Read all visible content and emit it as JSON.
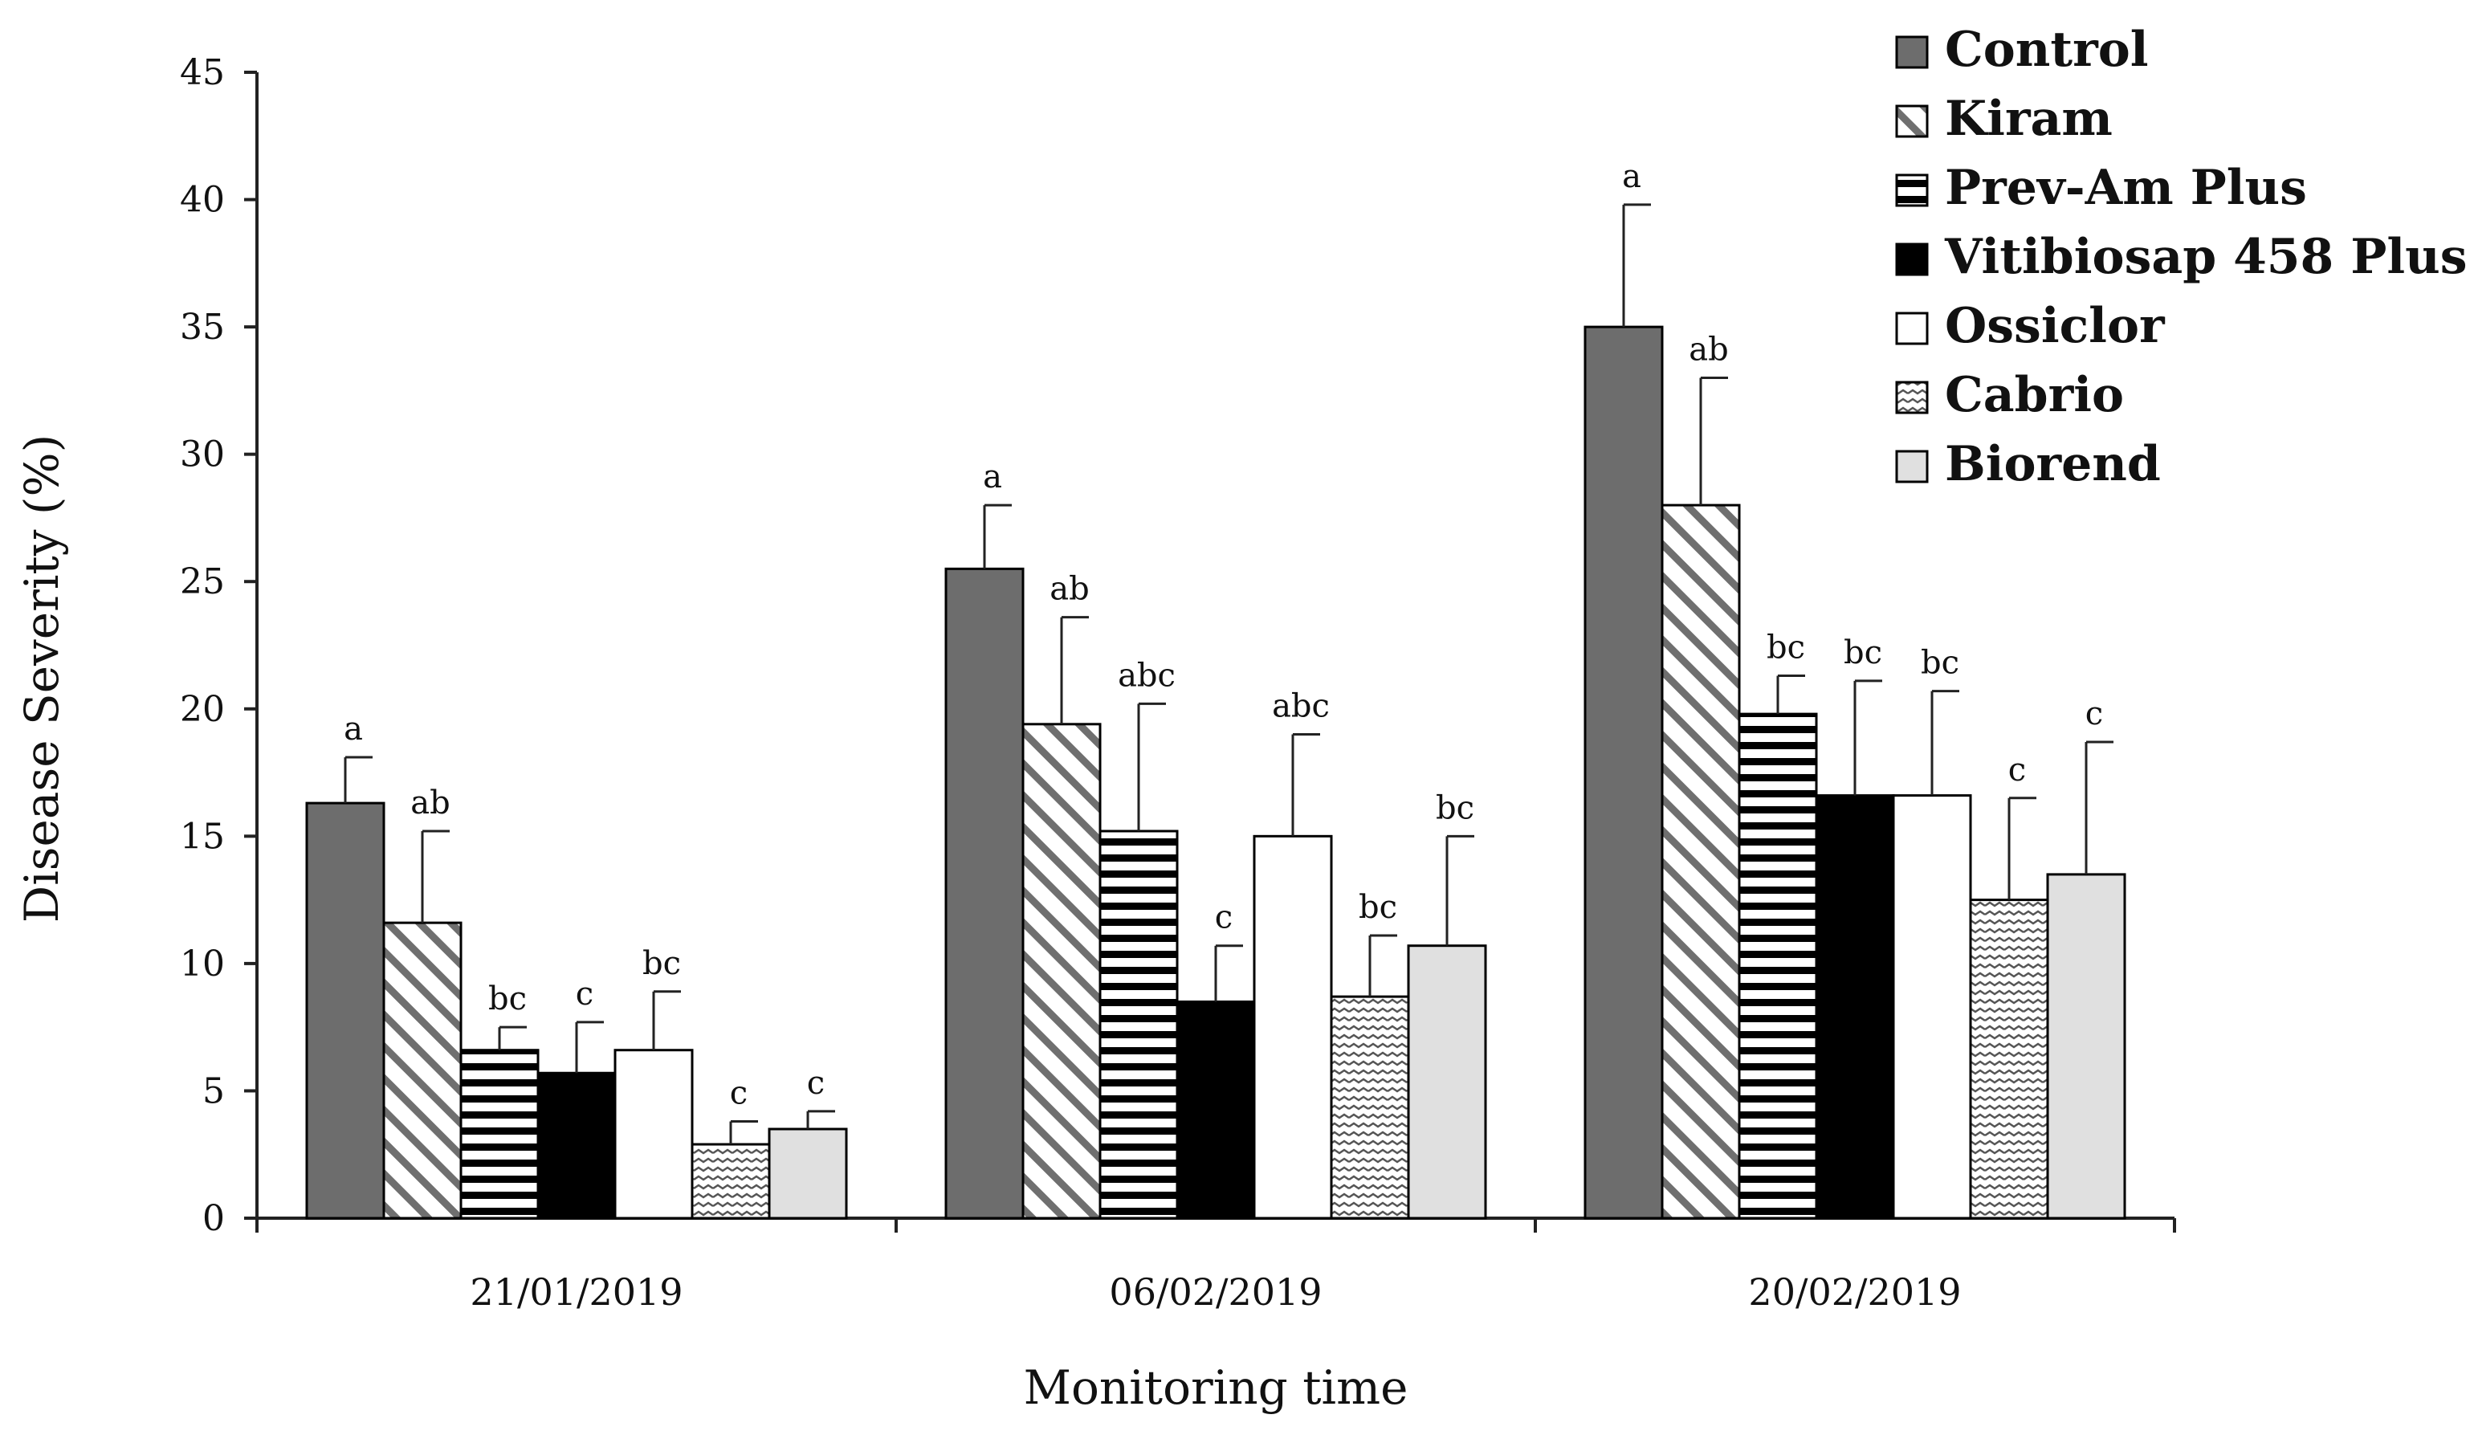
{
  "chart_data": {
    "type": "bar",
    "title": "",
    "xlabel": "Monitoring time",
    "ylabel": "Disease Severity (%)",
    "ylim": [
      0,
      45
    ],
    "yticks": [
      "0",
      "5",
      "10",
      "15",
      "20",
      "25",
      "30",
      "35",
      "40",
      "45"
    ],
    "categories": [
      "21/01/2019",
      "06/02/2019",
      "20/02/2019"
    ],
    "legend_position": "top-right",
    "series": [
      {
        "name": "Control",
        "pattern": "solid-gray",
        "color": "#6d6d6d",
        "values": [
          16.3,
          25.5,
          35.0
        ],
        "errors": [
          1.8,
          2.5,
          4.8
        ],
        "letters": [
          "a",
          "a",
          "a"
        ]
      },
      {
        "name": "Kiram",
        "pattern": "diagonal",
        "color": "#ffffff",
        "values": [
          11.6,
          19.4,
          28.0
        ],
        "errors": [
          3.6,
          4.2,
          5.0
        ],
        "letters": [
          "ab",
          "ab",
          "ab"
        ]
      },
      {
        "name": "Prev-Am Plus",
        "pattern": "horizontal",
        "color": "#ffffff",
        "values": [
          6.6,
          15.2,
          19.8
        ],
        "errors": [
          0.9,
          5.0,
          1.5
        ],
        "letters": [
          "bc",
          "abc",
          "bc"
        ]
      },
      {
        "name": "Vitibiosap 458 Plus",
        "pattern": "solid-black",
        "color": "#000000",
        "values": [
          5.7,
          8.5,
          16.6
        ],
        "errors": [
          2.0,
          2.2,
          4.5
        ],
        "letters": [
          "c",
          "c",
          "bc"
        ]
      },
      {
        "name": "Ossiclor",
        "pattern": "white",
        "color": "#ffffff",
        "values": [
          6.6,
          15.0,
          16.6
        ],
        "errors": [
          2.3,
          4.0,
          4.1
        ],
        "letters": [
          "bc",
          "abc",
          "bc"
        ]
      },
      {
        "name": "Cabrio",
        "pattern": "wave",
        "color": "#ffffff",
        "values": [
          2.9,
          8.7,
          12.5
        ],
        "errors": [
          0.9,
          2.4,
          4.0
        ],
        "letters": [
          "c",
          "bc",
          "c"
        ]
      },
      {
        "name": "Biorend",
        "pattern": "light-gray",
        "color": "#e0e0e0",
        "values": [
          3.5,
          10.7,
          13.5
        ],
        "errors": [
          0.7,
          4.3,
          5.2
        ],
        "letters": [
          "c",
          "bc",
          "c"
        ]
      }
    ]
  }
}
